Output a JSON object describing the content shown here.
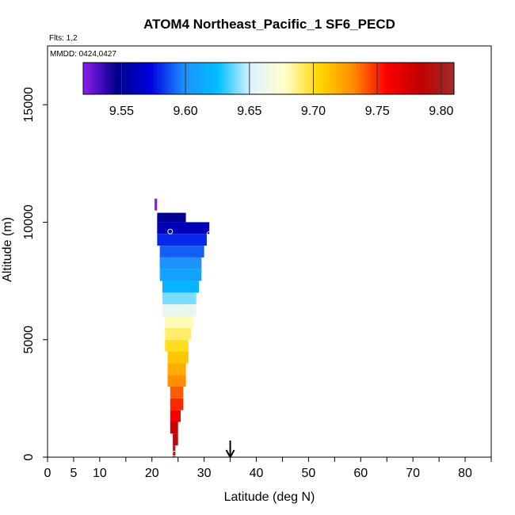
{
  "chart_data": {
    "type": "heatmap",
    "title": "ATOM4 Northeast_Pacific_1 SF6_PECD",
    "flights_label": "Flts: 1,2",
    "date_label": "MMDD: 0424,0427",
    "xlabel": "Latitude (deg N)",
    "ylabel": "Altitude (m)",
    "xlim": [
      0,
      85
    ],
    "ylim": [
      0,
      17500
    ],
    "xticks": [
      0,
      5,
      10,
      20,
      30,
      40,
      50,
      60,
      70,
      80
    ],
    "xtick_marks": [
      0,
      5,
      10,
      15,
      20,
      25,
      30,
      35,
      40,
      45,
      50,
      55,
      60,
      65,
      70,
      75,
      80,
      85
    ],
    "yticks": [
      0,
      5000,
      10000,
      15000
    ],
    "colorbar": {
      "min": 9.52,
      "max": 9.81,
      "ticks": [
        9.55,
        9.6,
        9.65,
        9.7,
        9.75,
        9.8
      ],
      "tick_labels": [
        "9.55",
        "9.60",
        "9.65",
        "9.70",
        "9.75",
        "9.80"
      ],
      "stops": [
        "#8e1cf0",
        "#00008b",
        "#0000e0",
        "#1e90ff",
        "#00bfff",
        "#e0f4ff",
        "#ffffc8",
        "#ffd700",
        "#ff8c00",
        "#ff0000",
        "#c00000",
        "#a52a2a"
      ]
    },
    "marker_latitude": 35,
    "cells": [
      {
        "lat0": 21,
        "lat1": 26.5,
        "alt0": 10000,
        "alt1": 10400,
        "value": 9.55
      },
      {
        "lat0": 21,
        "lat1": 31,
        "alt0": 9500,
        "alt1": 10000,
        "value": 9.56
      },
      {
        "lat0": 21,
        "lat1": 30.5,
        "alt0": 9000,
        "alt1": 9500,
        "value": 9.58
      },
      {
        "lat0": 21.5,
        "lat1": 30,
        "alt0": 8500,
        "alt1": 9000,
        "value": 9.59
      },
      {
        "lat0": 21.5,
        "lat1": 29.5,
        "alt0": 8000,
        "alt1": 8500,
        "value": 9.6
      },
      {
        "lat0": 21.5,
        "lat1": 29.5,
        "alt0": 7500,
        "alt1": 8000,
        "value": 9.61
      },
      {
        "lat0": 22,
        "lat1": 29,
        "alt0": 7000,
        "alt1": 7500,
        "value": 9.62
      },
      {
        "lat0": 22,
        "lat1": 28.5,
        "alt0": 6500,
        "alt1": 7000,
        "value": 9.64
      },
      {
        "lat0": 22,
        "lat1": 28.5,
        "alt0": 6000,
        "alt1": 6500,
        "value": 9.66
      },
      {
        "lat0": 22.5,
        "lat1": 28,
        "alt0": 5500,
        "alt1": 6000,
        "value": 9.68
      },
      {
        "lat0": 22.5,
        "lat1": 27.5,
        "alt0": 5000,
        "alt1": 5500,
        "value": 9.69
      },
      {
        "lat0": 22.5,
        "lat1": 27,
        "alt0": 4500,
        "alt1": 5000,
        "value": 9.7
      },
      {
        "lat0": 23,
        "lat1": 27,
        "alt0": 4000,
        "alt1": 4500,
        "value": 9.71
      },
      {
        "lat0": 23,
        "lat1": 26.5,
        "alt0": 3500,
        "alt1": 4000,
        "value": 9.72
      },
      {
        "lat0": 23,
        "lat1": 26.5,
        "alt0": 3000,
        "alt1": 3500,
        "value": 9.73
      },
      {
        "lat0": 23.5,
        "lat1": 26,
        "alt0": 2500,
        "alt1": 3000,
        "value": 9.74
      },
      {
        "lat0": 23.5,
        "lat1": 26,
        "alt0": 2000,
        "alt1": 2500,
        "value": 9.75
      },
      {
        "lat0": 23.5,
        "lat1": 25.5,
        "alt0": 1500,
        "alt1": 2000,
        "value": 9.76
      },
      {
        "lat0": 23.5,
        "lat1": 25,
        "alt0": 1000,
        "alt1": 1500,
        "value": 9.78
      },
      {
        "lat0": 24,
        "lat1": 25,
        "alt0": 500,
        "alt1": 1000,
        "value": 9.79
      },
      {
        "lat0": 24,
        "lat1": 24.5,
        "alt0": 0,
        "alt1": 500,
        "value": 9.8
      },
      {
        "lat0": 20.5,
        "lat1": 21,
        "alt0": 10500,
        "alt1": 11000,
        "value": 9.52
      }
    ],
    "points": [
      {
        "lat": 23.5,
        "alt": 9600
      },
      {
        "lat": 31,
        "alt": 9500
      },
      {
        "lat": 24.3,
        "alt": 150
      }
    ]
  }
}
